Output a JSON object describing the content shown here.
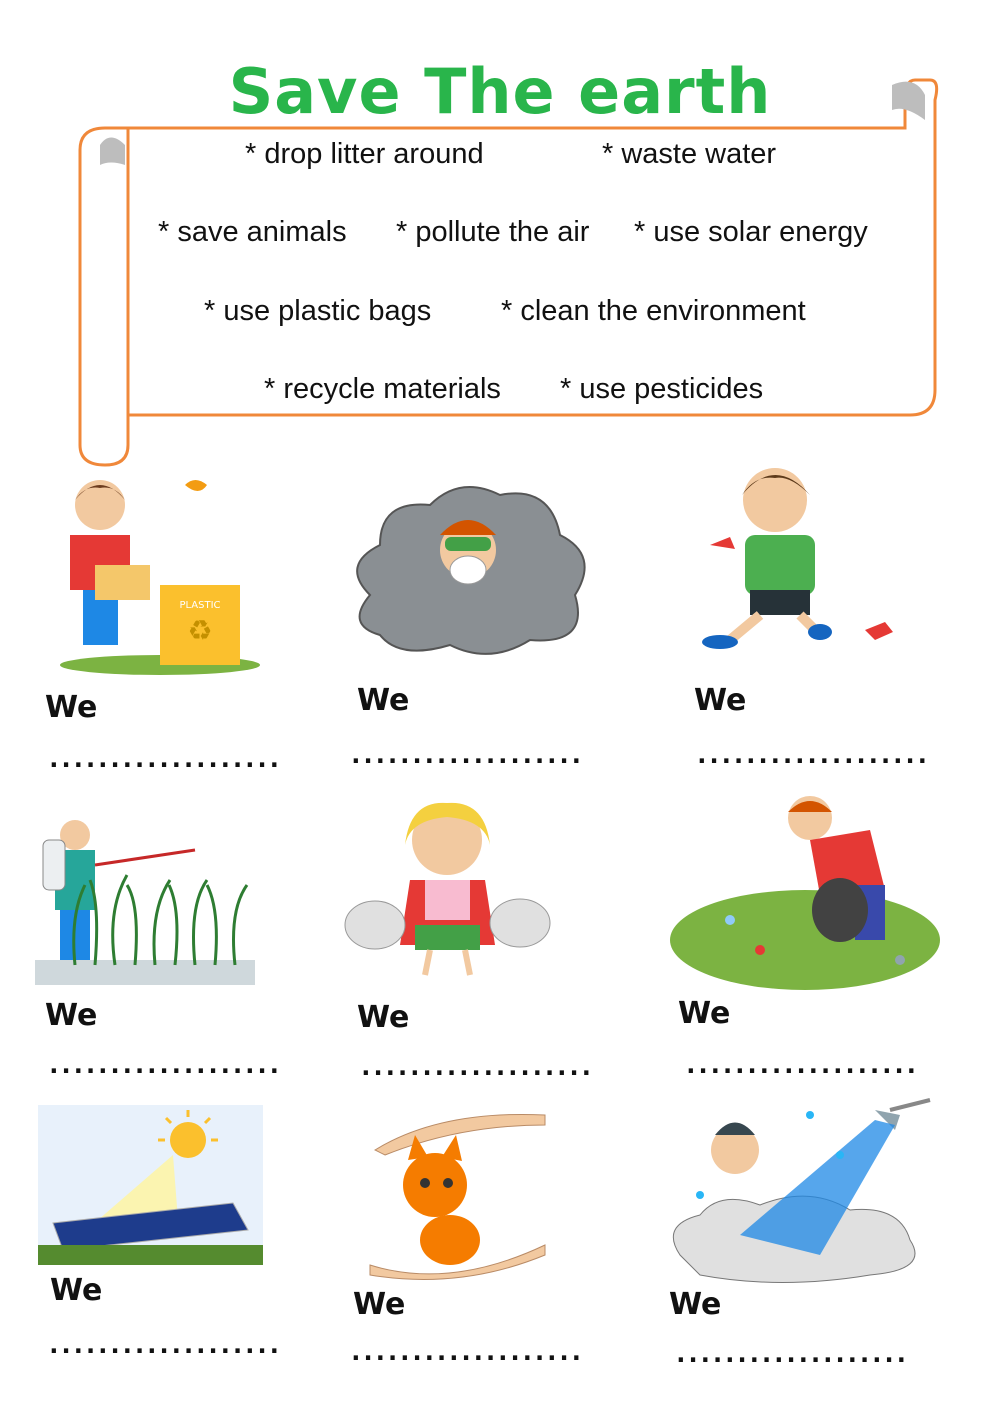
{
  "title": "Save The earth",
  "word_bank": {
    "row1": [
      "* drop litter around",
      "* waste water"
    ],
    "row2": [
      "* save animals",
      "* pollute the air",
      "* use solar energy"
    ],
    "row3": [
      "* use plastic bags",
      "* clean the environment"
    ],
    "row4": [
      "* recycle materials",
      "* use pesticides"
    ]
  },
  "exercises": [
    {
      "label": "We",
      "blank": "...................",
      "picture": "boy-recycling-plastic-bottles"
    },
    {
      "label": "We",
      "blank": "...................",
      "picture": "boy-wearing-mask-in-smog"
    },
    {
      "label": "We",
      "blank": "...................",
      "picture": "boy-throwing-wrapper"
    },
    {
      "label": "We",
      "blank": "...................",
      "picture": "farmer-spraying-crops"
    },
    {
      "label": "We",
      "blank": "...................",
      "picture": "girl-holding-plastic-bags"
    },
    {
      "label": "We",
      "blank": "...................",
      "picture": "boy-picking-up-litter"
    },
    {
      "label": "We",
      "blank": "...................",
      "picture": "solar-panel-under-sun"
    },
    {
      "label": "We",
      "blank": "...................",
      "picture": "hands-protecting-kitten"
    },
    {
      "label": "We",
      "blank": "...................",
      "picture": "man-under-running-shower"
    }
  ],
  "colors": {
    "title": "#29b54b",
    "scroll_border": "#f0883a",
    "scroll_curl": "#bdbdbd"
  }
}
